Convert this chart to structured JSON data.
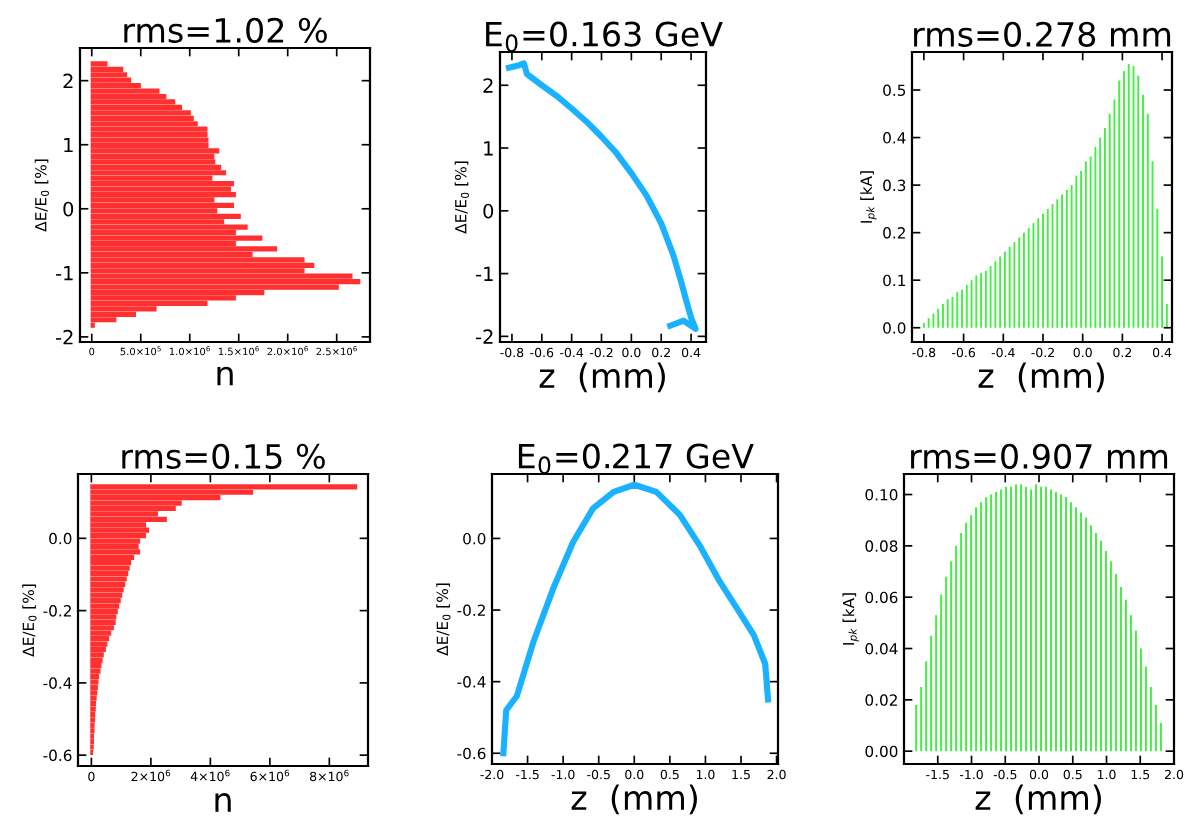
{
  "chart_data": [
    {
      "type": "histogram",
      "orientation": "horizontal",
      "title": "rms=1.02 %",
      "xlabel": "n",
      "ylabel": "ΔE/E$_{0}$ [%]",
      "color": "#ff3030",
      "bins": [
        -1.86,
        -1.775,
        -1.69,
        -1.605,
        -1.52,
        -1.435,
        -1.35,
        -1.265,
        -1.18,
        -1.095,
        -1.01,
        -0.925,
        -0.84,
        -0.755,
        -0.67,
        -0.585,
        -0.5,
        -0.415,
        -0.33,
        -0.245,
        -0.16,
        -0.075,
        0.01,
        0.095,
        0.18,
        0.265,
        0.35,
        0.435,
        0.52,
        0.605,
        0.69,
        0.775,
        0.86,
        0.945,
        1.03,
        1.115,
        1.2,
        1.285,
        1.37,
        1.455,
        1.54,
        1.625,
        1.71,
        1.795,
        1.88,
        1.965,
        2.05,
        2.135,
        2.22,
        2.305
      ],
      "values": [
        20000,
        240000,
        440000,
        650000,
        1170000,
        1460000,
        1750000,
        2510000,
        2730000,
        2650000,
        2160000,
        2260000,
        2160000,
        1630000,
        1880000,
        1460000,
        1730000,
        1460000,
        1580000,
        1340000,
        1510000,
        1270000,
        1440000,
        1240000,
        1460000,
        1410000,
        1440000,
        1220000,
        1360000,
        1310000,
        1250000,
        1240000,
        1290000,
        1180000,
        1180000,
        1170000,
        1170000,
        1070000,
        1030000,
        1000000,
        910000,
        840000,
        750000,
        680000,
        490000,
        390000,
        350000,
        310000,
        150000
      ],
      "xlim": [
        -120000,
        2840000
      ],
      "ylim": [
        -2.08,
        2.51
      ],
      "xticks": [
        0,
        {
          "value": 500000,
          "label": "5.0×10$^{5}$"
        },
        {
          "value": 1000000,
          "label": "1.0×10$^{6}$"
        },
        {
          "value": 1500000,
          "label": "1.5×10$^{6}$"
        },
        {
          "value": 2000000,
          "label": "2.0×10$^{6}$"
        },
        {
          "value": 2500000,
          "label": "2.5×10$^{6}$"
        }
      ],
      "yticks": [
        -2,
        -1,
        0,
        1,
        2
      ]
    },
    {
      "type": "line",
      "title": "E$_{0}$=0.163 GeV",
      "xlabel": "z  (mm)",
      "ylabel": "ΔE/E$_{0}$ [%]",
      "color": "#1ab2ff",
      "line_style": "solid",
      "x": [
        -0.82,
        -0.75,
        -0.72,
        -0.7,
        -0.6,
        -0.5,
        -0.4,
        -0.3,
        -0.2,
        -0.1,
        0.0,
        0.1,
        0.2,
        0.28,
        0.33,
        0.37,
        0.4,
        0.43,
        0.35,
        0.26
      ],
      "values": [
        2.28,
        2.32,
        2.35,
        2.18,
        2.0,
        1.83,
        1.63,
        1.42,
        1.18,
        0.92,
        0.6,
        0.25,
        -0.2,
        -0.7,
        -1.1,
        -1.45,
        -1.7,
        -1.88,
        -1.75,
        -1.83
      ],
      "xlim": [
        -0.88,
        0.5
      ],
      "ylim": [
        -2.09,
        2.53
      ],
      "xticks": [
        {
          "value": -0.8,
          "label": "-0.8"
        },
        {
          "value": -0.6,
          "label": "-0.6"
        },
        {
          "value": -0.4,
          "label": "-0.4"
        },
        {
          "value": -0.2,
          "label": "-0.2"
        },
        {
          "value": 0,
          "label": "0.0"
        },
        {
          "value": 0.2,
          "label": "0.2"
        },
        {
          "value": 0.4,
          "label": "0.4"
        }
      ],
      "yticks": [
        -2,
        -1,
        0,
        1,
        2
      ]
    },
    {
      "type": "bar",
      "title": "rms=0.278 mm",
      "xlabel": "z  (mm)",
      "ylabel": "I$_{pk}$ [kA]",
      "color": "#44ee44",
      "x": [
        -0.8,
        -0.776,
        -0.752,
        -0.728,
        -0.704,
        -0.68,
        -0.656,
        -0.632,
        -0.608,
        -0.584,
        -0.56,
        -0.536,
        -0.512,
        -0.488,
        -0.464,
        -0.44,
        -0.416,
        -0.392,
        -0.368,
        -0.344,
        -0.32,
        -0.296,
        -0.272,
        -0.248,
        -0.224,
        -0.2,
        -0.176,
        -0.152,
        -0.128,
        -0.104,
        -0.08,
        -0.056,
        -0.032,
        -0.008,
        0.016,
        0.04,
        0.064,
        0.088,
        0.112,
        0.136,
        0.16,
        0.184,
        0.208,
        0.232,
        0.256,
        0.28,
        0.304,
        0.328,
        0.352,
        0.376,
        0.4,
        0.424
      ],
      "values": [
        0.01,
        0.02,
        0.03,
        0.04,
        0.05,
        0.06,
        0.065,
        0.075,
        0.08,
        0.09,
        0.1,
        0.11,
        0.115,
        0.12,
        0.13,
        0.14,
        0.15,
        0.16,
        0.17,
        0.18,
        0.19,
        0.2,
        0.21,
        0.22,
        0.23,
        0.24,
        0.25,
        0.26,
        0.27,
        0.28,
        0.29,
        0.3,
        0.32,
        0.33,
        0.35,
        0.36,
        0.38,
        0.4,
        0.42,
        0.45,
        0.48,
        0.52,
        0.54,
        0.555,
        0.55,
        0.53,
        0.49,
        0.45,
        0.35,
        0.25,
        0.15,
        0.05
      ],
      "xlim": [
        -0.86,
        0.45
      ],
      "ylim": [
        -0.03,
        0.58
      ],
      "xticks": [
        {
          "value": -0.8,
          "label": "-0.8"
        },
        {
          "value": -0.6,
          "label": "-0.6"
        },
        {
          "value": -0.4,
          "label": "-0.4"
        },
        {
          "value": -0.2,
          "label": "-0.2"
        },
        {
          "value": 0,
          "label": "0.0"
        },
        {
          "value": 0.2,
          "label": "0.2"
        },
        {
          "value": 0.4,
          "label": "0.4"
        }
      ],
      "yticks": [
        {
          "value": 0,
          "label": "0.0"
        },
        0.1,
        0.2,
        0.3,
        0.4,
        0.5
      ]
    },
    {
      "type": "histogram",
      "orientation": "horizontal",
      "title": "rms=0.15 %",
      "xlabel": "n",
      "ylabel": "ΔE/E$_{0}$ [%]",
      "color": "#ff3030",
      "bins": [
        -0.6,
        -0.585,
        -0.57,
        -0.555,
        -0.54,
        -0.525,
        -0.51,
        -0.495,
        -0.48,
        -0.465,
        -0.45,
        -0.435,
        -0.42,
        -0.405,
        -0.39,
        -0.375,
        -0.36,
        -0.345,
        -0.33,
        -0.315,
        -0.3,
        -0.285,
        -0.27,
        -0.255,
        -0.24,
        -0.225,
        -0.21,
        -0.195,
        -0.18,
        -0.165,
        -0.15,
        -0.135,
        -0.12,
        -0.105,
        -0.09,
        -0.075,
        -0.06,
        -0.045,
        -0.03,
        -0.015,
        0,
        0.015,
        0.03,
        0.045,
        0.06,
        0.075,
        0.09,
        0.105,
        0.12,
        0.135,
        0.15
      ],
      "values": [
        20000,
        40000,
        50000,
        50000,
        70000,
        70000,
        90000,
        90000,
        110000,
        120000,
        140000,
        160000,
        180000,
        200000,
        220000,
        270000,
        300000,
        340000,
        380000,
        450000,
        500000,
        560000,
        630000,
        720000,
        780000,
        800000,
        850000,
        900000,
        950000,
        1000000,
        1050000,
        1100000,
        1150000,
        1200000,
        1250000,
        1300000,
        1400000,
        1600000,
        1550000,
        1600000,
        1800000,
        1900000,
        1800000,
        2500000,
        2200000,
        2800000,
        3000000,
        4300000,
        5400000,
        8900000
      ],
      "xlim": [
        -450000,
        9300000
      ],
      "ylim": [
        -0.63,
        0.178
      ],
      "xticks": [
        0,
        {
          "value": 2000000,
          "label": "2×10$^{6}$"
        },
        {
          "value": 4000000,
          "label": "4×10$^{6}$"
        },
        {
          "value": 6000000,
          "label": "6×10$^{6}$"
        },
        {
          "value": 8000000,
          "label": "8×10$^{6}$"
        }
      ],
      "yticks": [
        {
          "value": -0.6,
          "label": "-0.6"
        },
        {
          "value": -0.4,
          "label": "-0.4"
        },
        {
          "value": -0.2,
          "label": "-0.2"
        },
        {
          "value": 0,
          "label": "0.0"
        }
      ]
    },
    {
      "type": "line",
      "title": "E$_{0}$=0.217 GeV",
      "xlabel": "z  (mm)",
      "ylabel": "ΔE/E$_{0}$ [%]",
      "color": "#1ab2ff",
      "line_style": "solid",
      "x": [
        -1.84,
        -1.8,
        -1.65,
        -1.42,
        -1.14,
        -0.86,
        -0.58,
        -0.29,
        0.0,
        0.31,
        0.64,
        0.92,
        1.2,
        1.49,
        1.68,
        1.84,
        1.88
      ],
      "values": [
        -0.6,
        -0.48,
        -0.44,
        -0.29,
        -0.14,
        -0.01,
        0.084,
        0.13,
        0.15,
        0.13,
        0.066,
        -0.02,
        -0.12,
        -0.21,
        -0.27,
        -0.35,
        -0.45
      ],
      "xlim": [
        -2.0,
        2.02
      ],
      "ylim": [
        -0.63,
        0.18
      ],
      "xticks": [
        {
          "value": -2,
          "label": "-2.0"
        },
        {
          "value": -1.5,
          "label": "-1.5"
        },
        {
          "value": -1,
          "label": "-1.0"
        },
        {
          "value": -0.5,
          "label": "-0.5"
        },
        {
          "value": 0,
          "label": "0.0"
        },
        {
          "value": 0.5,
          "label": "0.5"
        },
        {
          "value": 1,
          "label": "1.0"
        },
        {
          "value": 1.5,
          "label": "1.5"
        },
        {
          "value": 2,
          "label": "2.0"
        }
      ],
      "yticks": [
        {
          "value": -0.6,
          "label": "-0.6"
        },
        {
          "value": -0.4,
          "label": "-0.4"
        },
        {
          "value": -0.2,
          "label": "-0.2"
        },
        {
          "value": 0,
          "label": "0.0"
        }
      ]
    },
    {
      "type": "bar",
      "title": "rms=0.907 mm",
      "xlabel": "z  (mm)",
      "ylabel": "I$_{pk}$ [kA]",
      "color": "#44ee44",
      "x": [
        -1.82,
        -1.746,
        -1.672,
        -1.598,
        -1.524,
        -1.45,
        -1.376,
        -1.302,
        -1.228,
        -1.154,
        -1.08,
        -1.006,
        -0.932,
        -0.858,
        -0.784,
        -0.71,
        -0.636,
        -0.562,
        -0.488,
        -0.414,
        -0.34,
        -0.266,
        -0.192,
        -0.118,
        -0.044,
        0.03,
        0.104,
        0.178,
        0.252,
        0.326,
        0.4,
        0.474,
        0.548,
        0.622,
        0.696,
        0.77,
        0.844,
        0.918,
        0.992,
        1.066,
        1.14,
        1.214,
        1.288,
        1.362,
        1.436,
        1.51,
        1.584,
        1.658,
        1.732,
        1.806
      ],
      "values": [
        0.018,
        0.025,
        0.035,
        0.045,
        0.053,
        0.061,
        0.068,
        0.074,
        0.08,
        0.085,
        0.089,
        0.092,
        0.095,
        0.097,
        0.099,
        0.1,
        0.101,
        0.102,
        0.103,
        0.103,
        0.104,
        0.104,
        0.103,
        0.102,
        0.104,
        0.103,
        0.103,
        0.102,
        0.101,
        0.1,
        0.099,
        0.097,
        0.095,
        0.093,
        0.091,
        0.088,
        0.085,
        0.082,
        0.078,
        0.074,
        0.069,
        0.064,
        0.059,
        0.053,
        0.047,
        0.04,
        0.033,
        0.025,
        0.018,
        0.011
      ],
      "xlim": [
        -2.0,
        2.0
      ],
      "ylim": [
        -0.005,
        0.108
      ],
      "xticks": [
        {
          "value": -1.5,
          "label": "-1.5"
        },
        {
          "value": -1,
          "label": "-1.0"
        },
        {
          "value": -0.5,
          "label": "-0.5"
        },
        {
          "value": 0,
          "label": "0.0"
        },
        {
          "value": 0.5,
          "label": "0.5"
        },
        {
          "value": 1,
          "label": "1.0"
        },
        {
          "value": 1.5,
          "label": "1.5"
        },
        {
          "value": 2,
          "label": "2.0"
        }
      ],
      "yticks": [
        {
          "value": 0,
          "label": "0.00"
        },
        {
          "value": 0.02,
          "label": "0.02"
        },
        {
          "value": 0.04,
          "label": "0.04"
        },
        {
          "value": 0.06,
          "label": "0.06"
        },
        {
          "value": 0.08,
          "label": "0.08"
        },
        {
          "value": 0.1,
          "label": "0.10"
        }
      ]
    }
  ]
}
